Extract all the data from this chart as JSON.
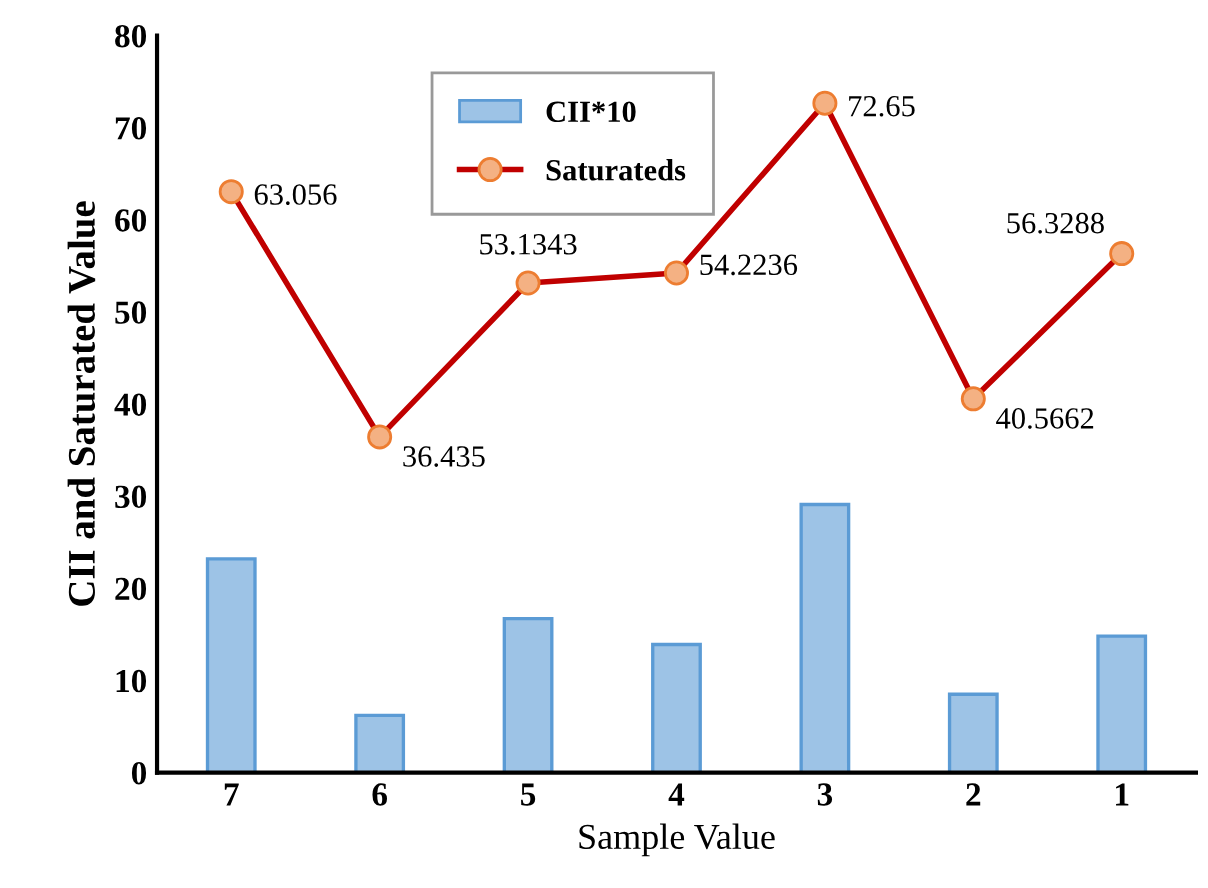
{
  "chart_data": {
    "type": "bar",
    "xlabel": "Sample Value",
    "ylabel": "CII and Saturated Value",
    "categories": [
      "7",
      "6",
      "5",
      "4",
      "3",
      "2",
      "1"
    ],
    "ylim": [
      0,
      80
    ],
    "yticks": [
      0,
      10,
      20,
      30,
      40,
      50,
      60,
      70,
      80
    ],
    "grid": false,
    "legend": "top left",
    "series": [
      {
        "name": "CII*10",
        "color": "#9dc3e6",
        "values": [
          23.2,
          6.2,
          16.7,
          13.9,
          29.1,
          8.5,
          14.8
        ]
      },
      {
        "name": "Saturateds",
        "type": "line",
        "color": "#c00000",
        "marker": "circle",
        "values": [
          63.056,
          36.435,
          53.1343,
          54.2236,
          72.65,
          40.5662,
          56.3288
        ],
        "value_labels": [
          "63.056",
          "36.435",
          "53.1343",
          "54.2236",
          "72.65",
          "40.5662",
          "56.3288"
        ]
      }
    ]
  }
}
